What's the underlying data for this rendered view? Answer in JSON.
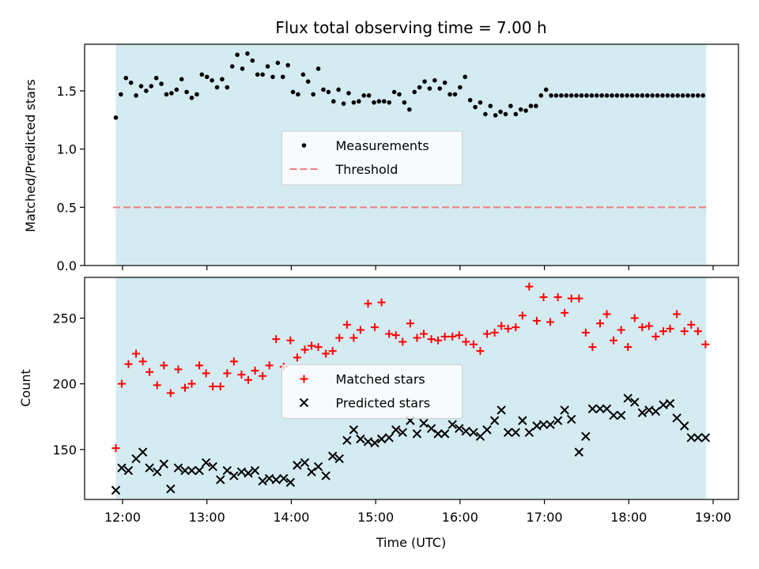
{
  "title": "Flux total observing time = 7.00 h",
  "colors": {
    "background": "#ffffff",
    "shade": "#add8e6",
    "measurement": "#000000",
    "threshold": "#f08080",
    "matched": "#ff0000",
    "predicted": "#000000"
  },
  "chart_data": [
    {
      "type": "scatter",
      "ylabel": "Matched/Predicted stars",
      "xlim": [
        11.55,
        19.3
      ],
      "ylim": [
        0,
        1.9
      ],
      "y_ticks": [
        {
          "v": 0.0,
          "label": "0.0"
        },
        {
          "v": 0.5,
          "label": "0.5"
        },
        {
          "v": 1.0,
          "label": "1.0"
        },
        {
          "v": 1.5,
          "label": "1.5"
        }
      ],
      "shaded_x_range": [
        11.92,
        18.92
      ],
      "threshold": 0.5,
      "legend": {
        "position": "center",
        "entries": [
          {
            "key": "measurements",
            "label": "Measurements",
            "marker": "dot"
          },
          {
            "key": "threshold",
            "label": "Threshold",
            "marker": "dashed-line"
          }
        ]
      },
      "series": [
        {
          "name": "Measurements",
          "key": "measurements",
          "marker": "dot",
          "x": [
            11.92,
            11.98,
            12.04,
            12.1,
            12.16,
            12.22,
            12.28,
            12.34,
            12.4,
            12.46,
            12.52,
            12.58,
            12.64,
            12.7,
            12.76,
            12.82,
            12.88,
            12.94,
            13.0,
            13.06,
            13.12,
            13.18,
            13.24,
            13.3,
            13.36,
            13.42,
            13.48,
            13.54,
            13.6,
            13.66,
            13.72,
            13.78,
            13.84,
            13.9,
            13.96,
            14.02,
            14.08,
            14.14,
            14.2,
            14.26,
            14.32,
            14.38,
            14.44,
            14.5,
            14.56,
            14.62,
            14.68,
            14.74,
            14.8,
            14.86,
            14.92,
            14.98,
            15.04,
            15.1,
            15.16,
            15.22,
            15.28,
            15.34,
            15.4,
            15.46,
            15.52,
            15.58,
            15.64,
            15.7,
            15.76,
            15.82,
            15.88,
            15.94,
            16.0,
            16.06,
            16.12,
            16.18,
            16.24,
            16.3,
            16.36,
            16.42,
            16.48,
            16.54,
            16.6,
            16.66,
            16.72,
            16.78,
            16.84,
            16.9,
            16.96,
            17.02,
            17.08,
            17.14,
            17.2,
            17.26,
            17.32,
            17.38,
            17.44,
            17.5,
            17.56,
            17.62,
            17.68,
            17.74,
            17.8,
            17.86,
            17.92,
            17.98,
            18.04,
            18.1,
            18.16,
            18.22,
            18.28,
            18.34,
            18.4,
            18.46,
            18.52,
            18.58,
            18.64,
            18.7,
            18.76,
            18.82,
            18.88
          ],
          "y": [
            1.27,
            1.47,
            1.61,
            1.57,
            1.46,
            1.54,
            1.5,
            1.54,
            1.61,
            1.56,
            1.47,
            1.48,
            1.51,
            1.6,
            1.49,
            1.44,
            1.47,
            1.64,
            1.62,
            1.59,
            1.53,
            1.6,
            1.53,
            1.71,
            1.81,
            1.69,
            1.82,
            1.76,
            1.64,
            1.64,
            1.71,
            1.62,
            1.74,
            1.62,
            1.72,
            1.49,
            1.47,
            1.64,
            1.58,
            1.47,
            1.69,
            1.51,
            1.49,
            1.41,
            1.51,
            1.39,
            1.48,
            1.4,
            1.41,
            1.46,
            1.46,
            1.4,
            1.41,
            1.41,
            1.4,
            1.49,
            1.47,
            1.4,
            1.34,
            1.49,
            1.53,
            1.58,
            1.52,
            1.59,
            1.52,
            1.57,
            1.47,
            1.47,
            1.53,
            1.62,
            1.42,
            1.36,
            1.4,
            1.3,
            1.37,
            1.29,
            1.32,
            1.3,
            1.37,
            1.3,
            1.34,
            1.33,
            1.37,
            1.37,
            1.46,
            1.51,
            1.46,
            1.46,
            1.46,
            1.46,
            1.46,
            1.46,
            1.46,
            1.46,
            1.46,
            1.46,
            1.46,
            1.46,
            1.46,
            1.46,
            1.46,
            1.46,
            1.46,
            1.46,
            1.46,
            1.46,
            1.46,
            1.46,
            1.46,
            1.46,
            1.46,
            1.46,
            1.46,
            1.46,
            1.46,
            1.46,
            1.46
          ]
        }
      ]
    },
    {
      "type": "scatter",
      "xlabel": "Time (UTC)",
      "ylabel": "Count",
      "xlim": [
        11.55,
        19.3
      ],
      "ylim": [
        112,
        281
      ],
      "x_ticks": [
        {
          "v": 12,
          "label": "12:00"
        },
        {
          "v": 13,
          "label": "13:00"
        },
        {
          "v": 14,
          "label": "14:00"
        },
        {
          "v": 15,
          "label": "15:00"
        },
        {
          "v": 16,
          "label": "16:00"
        },
        {
          "v": 17,
          "label": "17:00"
        },
        {
          "v": 18,
          "label": "18:00"
        },
        {
          "v": 19,
          "label": "19:00"
        }
      ],
      "y_ticks": [
        {
          "v": 150,
          "label": "150"
        },
        {
          "v": 200,
          "label": "200"
        },
        {
          "v": 250,
          "label": "250"
        }
      ],
      "shaded_x_range": [
        11.92,
        18.92
      ],
      "legend": {
        "position": "center",
        "entries": [
          {
            "key": "matched",
            "label": "Matched stars",
            "marker": "plus"
          },
          {
            "key": "predicted",
            "label": "Predicted stars",
            "marker": "x"
          }
        ]
      },
      "series": [
        {
          "name": "Matched stars",
          "key": "matched",
          "marker": "plus",
          "x": [
            11.92,
            11.99,
            12.07,
            12.16,
            12.24,
            12.32,
            12.41,
            12.49,
            12.57,
            12.66,
            12.74,
            12.82,
            12.91,
            12.99,
            13.07,
            13.16,
            13.24,
            13.32,
            13.41,
            13.49,
            13.57,
            13.66,
            13.74,
            13.82,
            13.91,
            13.99,
            14.07,
            14.16,
            14.24,
            14.32,
            14.41,
            14.49,
            14.57,
            14.66,
            14.74,
            14.82,
            14.91,
            14.99,
            15.07,
            15.16,
            15.24,
            15.32,
            15.41,
            15.49,
            15.57,
            15.66,
            15.74,
            15.82,
            15.91,
            15.99,
            16.07,
            16.16,
            16.24,
            16.32,
            16.41,
            16.49,
            16.57,
            16.66,
            16.74,
            16.82,
            16.91,
            16.99,
            17.07,
            17.16,
            17.24,
            17.32,
            17.41,
            17.49,
            17.57,
            17.66,
            17.74,
            17.82,
            17.91,
            17.99,
            18.07,
            18.16,
            18.24,
            18.32,
            18.41,
            18.49,
            18.57,
            18.66,
            18.74,
            18.82,
            18.91
          ],
          "y": [
            151,
            200,
            215,
            223,
            217,
            209,
            199,
            214,
            193,
            211,
            197,
            200,
            214,
            208,
            198,
            198,
            208,
            217,
            207,
            203,
            210,
            206,
            214,
            234,
            213,
            233,
            220,
            226,
            229,
            228,
            223,
            225,
            235,
            245,
            235,
            241,
            261,
            243,
            262,
            238,
            237,
            232,
            246,
            235,
            238,
            234,
            233,
            236,
            236,
            237,
            232,
            230,
            225,
            238,
            239,
            244,
            242,
            243,
            252,
            274,
            248,
            266,
            247,
            266,
            254,
            265,
            265,
            239,
            228,
            246,
            253,
            233,
            241,
            228,
            250,
            243,
            244,
            236,
            240,
            242,
            253,
            240,
            245,
            240,
            230
          ]
        },
        {
          "name": "Predicted stars",
          "key": "predicted",
          "marker": "x",
          "x": [
            11.92,
            11.99,
            12.07,
            12.16,
            12.24,
            12.32,
            12.41,
            12.49,
            12.57,
            12.66,
            12.74,
            12.82,
            12.91,
            12.99,
            13.07,
            13.16,
            13.24,
            13.32,
            13.41,
            13.49,
            13.57,
            13.66,
            13.74,
            13.82,
            13.91,
            13.99,
            14.07,
            14.16,
            14.24,
            14.32,
            14.41,
            14.49,
            14.57,
            14.66,
            14.74,
            14.82,
            14.91,
            14.99,
            15.07,
            15.16,
            15.24,
            15.32,
            15.41,
            15.49,
            15.57,
            15.66,
            15.74,
            15.82,
            15.91,
            15.99,
            16.07,
            16.16,
            16.24,
            16.32,
            16.41,
            16.49,
            16.57,
            16.66,
            16.74,
            16.82,
            16.91,
            16.99,
            17.07,
            17.16,
            17.24,
            17.32,
            17.41,
            17.49,
            17.57,
            17.66,
            17.74,
            17.82,
            17.91,
            17.99,
            18.07,
            18.16,
            18.24,
            18.32,
            18.41,
            18.49,
            18.57,
            18.66,
            18.74,
            18.82,
            18.91
          ],
          "y": [
            119,
            136,
            134,
            143,
            148,
            136,
            133,
            139,
            120,
            136,
            134,
            134,
            134,
            140,
            137,
            127,
            134,
            130,
            133,
            132,
            134,
            126,
            128,
            127,
            128,
            125,
            138,
            140,
            133,
            137,
            130,
            145,
            143,
            157,
            165,
            158,
            156,
            155,
            158,
            159,
            165,
            163,
            172,
            162,
            170,
            166,
            162,
            162,
            169,
            166,
            164,
            163,
            160,
            165,
            172,
            180,
            163,
            163,
            172,
            163,
            168,
            169,
            169,
            172,
            180,
            173,
            148,
            160,
            181,
            181,
            181,
            176,
            176,
            189,
            186,
            178,
            180,
            179,
            184,
            185,
            174,
            168,
            159,
            159,
            159
          ]
        }
      ]
    }
  ]
}
